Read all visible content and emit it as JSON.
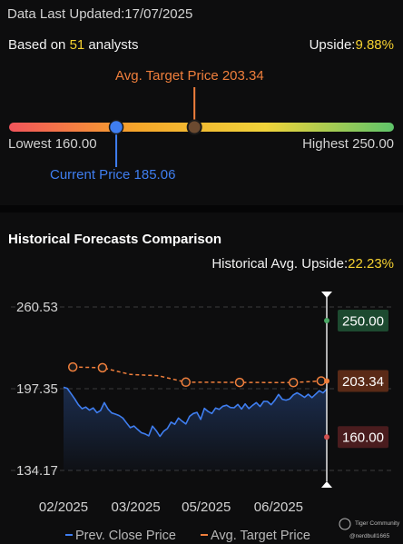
{
  "header": {
    "updated_label": "Data Last Updated:",
    "updated_date": "17/07/2025",
    "analysts_prefix": "Based on ",
    "analysts_count": "51",
    "analysts_suffix": " analysts",
    "upside_label": "Upside:",
    "upside_value": "9.88%"
  },
  "target_bar": {
    "avg_target_label": "Avg. Target Price 203.34",
    "lowest_label": "Lowest 160.00",
    "highest_label": "Highest 250.00",
    "current_label": "Current Price 185.06",
    "low": 160.0,
    "high": 250.0,
    "current": 185.06,
    "avg_target": 203.34,
    "gradient_colors": [
      "#f2545b",
      "#f5a62a",
      "#f0d33a",
      "#5ec46a"
    ]
  },
  "historical": {
    "title": "Historical Forecasts Comparison",
    "upside_label": "Historical Avg. Upside:",
    "upside_value": "22.23%",
    "watermark_brand": "Tiger Community",
    "watermark_user": "@nerdbull1665"
  },
  "chart_data": {
    "type": "line",
    "y_ticks": [
      "260.53",
      "197.35",
      "134.17"
    ],
    "ylim": [
      134.17,
      260.53
    ],
    "x_tick_labels": [
      "02/2025",
      "03/2025",
      "05/2025",
      "06/2025"
    ],
    "x_tick_positions": [
      0,
      19.5,
      38.5,
      58
    ],
    "x_range": [
      0,
      71
    ],
    "series": [
      {
        "name": "Prev. Close Price",
        "color": "#3f7ef0",
        "x": [
          0,
          1,
          2,
          3,
          4,
          5,
          6,
          7,
          8,
          9,
          10,
          11,
          12,
          13,
          14,
          15,
          16,
          17,
          18,
          19,
          20,
          21,
          22,
          23,
          24,
          25,
          26,
          27,
          28,
          29,
          30,
          31,
          32,
          33,
          34,
          35,
          36,
          37,
          38,
          39,
          40,
          41,
          42,
          43,
          44,
          45,
          46,
          47,
          48,
          49,
          50,
          51,
          52,
          53,
          54,
          55,
          56,
          57,
          58,
          59,
          60,
          61,
          62,
          63,
          64,
          65,
          66,
          67,
          68,
          69,
          70,
          71
        ],
        "y": [
          198.5,
          197.6,
          193.6,
          189.5,
          185.0,
          181.9,
          183.2,
          180.8,
          182.5,
          178.8,
          180.5,
          186.6,
          181.6,
          178.6,
          177.7,
          176.6,
          174.6,
          170.9,
          167.2,
          168.5,
          165.8,
          163.3,
          162.4,
          160.9,
          168.4,
          164.9,
          160.5,
          164.5,
          166.5,
          171.5,
          169.8,
          174.7,
          172.2,
          170.1,
          176.0,
          178.2,
          179.0,
          173.6,
          182.2,
          179.7,
          178.2,
          182.4,
          181.4,
          183.8,
          184.6,
          182.8,
          182.6,
          185.2,
          181.6,
          185.6,
          182.0,
          184.5,
          186.6,
          183.6,
          187.6,
          187.5,
          185.0,
          188.4,
          192.9,
          189.2,
          188.5,
          189.5,
          192.6,
          194.2,
          192.6,
          190.7,
          193.1,
          190.5,
          193.1,
          195.8,
          194.1,
          197.1
        ]
      },
      {
        "name": "Avg. Target Price",
        "color": "#f07f3c",
        "x": [
          2.5,
          10.5,
          18,
          25.5,
          33,
          40.5,
          47.5,
          54.5,
          62,
          69.5
        ],
        "y": [
          214.1,
          213.6,
          208.4,
          207.4,
          202.4,
          202.3,
          202.2,
          202.1,
          202.1,
          203.34
        ],
        "markers": [
          true,
          true,
          false,
          false,
          true,
          false,
          true,
          false,
          true,
          true
        ]
      }
    ],
    "range_markers": [
      {
        "label": "250.00",
        "value": 250.0,
        "color": "#4aa865",
        "bg": "#1d4a30"
      },
      {
        "label": "203.34",
        "value": 203.34,
        "color": "#f07f3c",
        "bg": "#5a2a17"
      },
      {
        "label": "160.00",
        "value": 160.0,
        "color": "#d05050",
        "bg": "#4a1c1e"
      }
    ],
    "legend": [
      {
        "label": "Prev. Close Price",
        "color": "#3f7ef0"
      },
      {
        "label": "Avg. Target Price",
        "color": "#f07f3c"
      }
    ],
    "grid": true
  }
}
